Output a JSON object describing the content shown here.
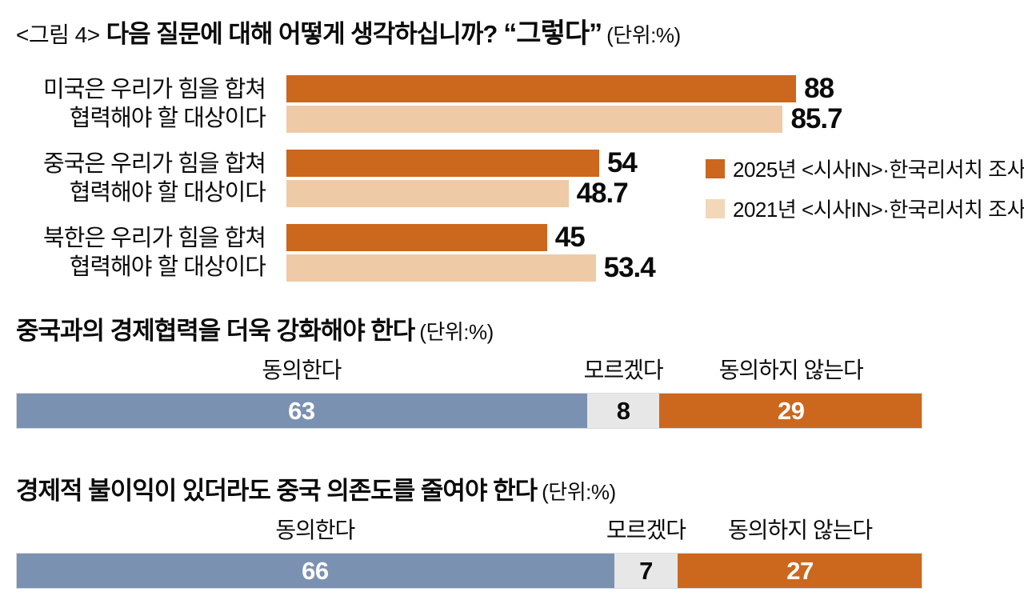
{
  "header": {
    "tag": "<그림 4>",
    "title": "다음 질문에 대해 어떻게 생각하십니까?",
    "quote": "“그렇다”",
    "unit": "(단위:%)"
  },
  "colors": {
    "orange_2025": "#CC671E",
    "peach_2021": "#EECBA6",
    "legend_peach": "#F2D7B8",
    "agree_blue": "#7B91B2",
    "neutral_gray": "#E7E7E7",
    "disagree_orange": "#CC671E",
    "text_dark": "#0b0b0b",
    "text_light": "#ffffff"
  },
  "grouped": {
    "groups": [
      {
        "label1": "미국은 우리가 힘을 합쳐",
        "label2": "협력해야 할 대상이다",
        "v2025": 88,
        "v2021": 85.7
      },
      {
        "label1": "중국은 우리가 힘을 합쳐",
        "label2": "협력해야 할 대상이다",
        "v2025": 54,
        "v2021": 48.7
      },
      {
        "label1": "북한은 우리가 힘을 합쳐",
        "label2": "협력해야 할 대상이다",
        "v2025": 45,
        "v2021": 53.4
      }
    ],
    "legend": [
      {
        "label": "2025년 <시사IN>·한국리서치 조사"
      },
      {
        "label": "2021년 <시사IN>·한국리서치 조사"
      }
    ]
  },
  "stacked": [
    {
      "title": "중국과의 경제협력을 더욱 강화해야 한다",
      "unit": "(단위:%)",
      "segments": [
        {
          "label": "동의한다",
          "value": 63,
          "text": "#ffffff"
        },
        {
          "label": "모르겠다",
          "value": 8,
          "text": "#0b0b0b"
        },
        {
          "label": "동의하지 않는다",
          "value": 29,
          "text": "#ffffff"
        }
      ]
    },
    {
      "title": "경제적 불이익이 있더라도 중국 의존도를 줄여야 한다",
      "unit": "(단위:%)",
      "segments": [
        {
          "label": "동의한다",
          "value": 66,
          "text": "#ffffff"
        },
        {
          "label": "모르겠다",
          "value": 7,
          "text": "#0b0b0b"
        },
        {
          "label": "동의하지 않는다",
          "value": 27,
          "text": "#ffffff"
        }
      ]
    }
  ],
  "chart_data": [
    {
      "type": "bar",
      "orientation": "horizontal",
      "title": "<그림 4> 다음 질문에 대해 어떻게 생각하십니까? “그렇다” (단위:%)",
      "categories": [
        "미국은 우리가 힘을 합쳐 협력해야 할 대상이다",
        "중국은 우리가 힘을 합쳐 협력해야 할 대상이다",
        "북한은 우리가 힘을 합쳐 협력해야 할 대상이다"
      ],
      "series": [
        {
          "name": "2025년 <시사IN>·한국리서치 조사",
          "color": "#CC671E",
          "values": [
            88,
            54,
            45
          ]
        },
        {
          "name": "2021년 <시사IN>·한국리서치 조사",
          "color": "#EECBA6",
          "values": [
            85.7,
            48.7,
            53.4
          ]
        }
      ],
      "xlim": [
        0,
        100
      ],
      "grid": false,
      "legend_position": "middle-right",
      "data_labels": true
    },
    {
      "type": "bar",
      "subtype": "stacked-horizontal-100pct",
      "title": "중국과의 경제협력을 더욱 강화해야 한다 (단위:%)",
      "categories": [
        "동의한다",
        "모르겠다",
        "동의하지 않는다"
      ],
      "values": [
        63,
        8,
        29
      ],
      "colors": [
        "#7B91B2",
        "#E7E7E7",
        "#CC671E"
      ],
      "data_labels": true
    },
    {
      "type": "bar",
      "subtype": "stacked-horizontal-100pct",
      "title": "경제적 불이익이 있더라도 중국 의존도를 줄여야 한다 (단위:%)",
      "categories": [
        "동의한다",
        "모르겠다",
        "동의하지 않는다"
      ],
      "values": [
        66,
        7,
        27
      ],
      "colors": [
        "#7B91B2",
        "#E7E7E7",
        "#CC671E"
      ],
      "data_labels": true
    }
  ]
}
